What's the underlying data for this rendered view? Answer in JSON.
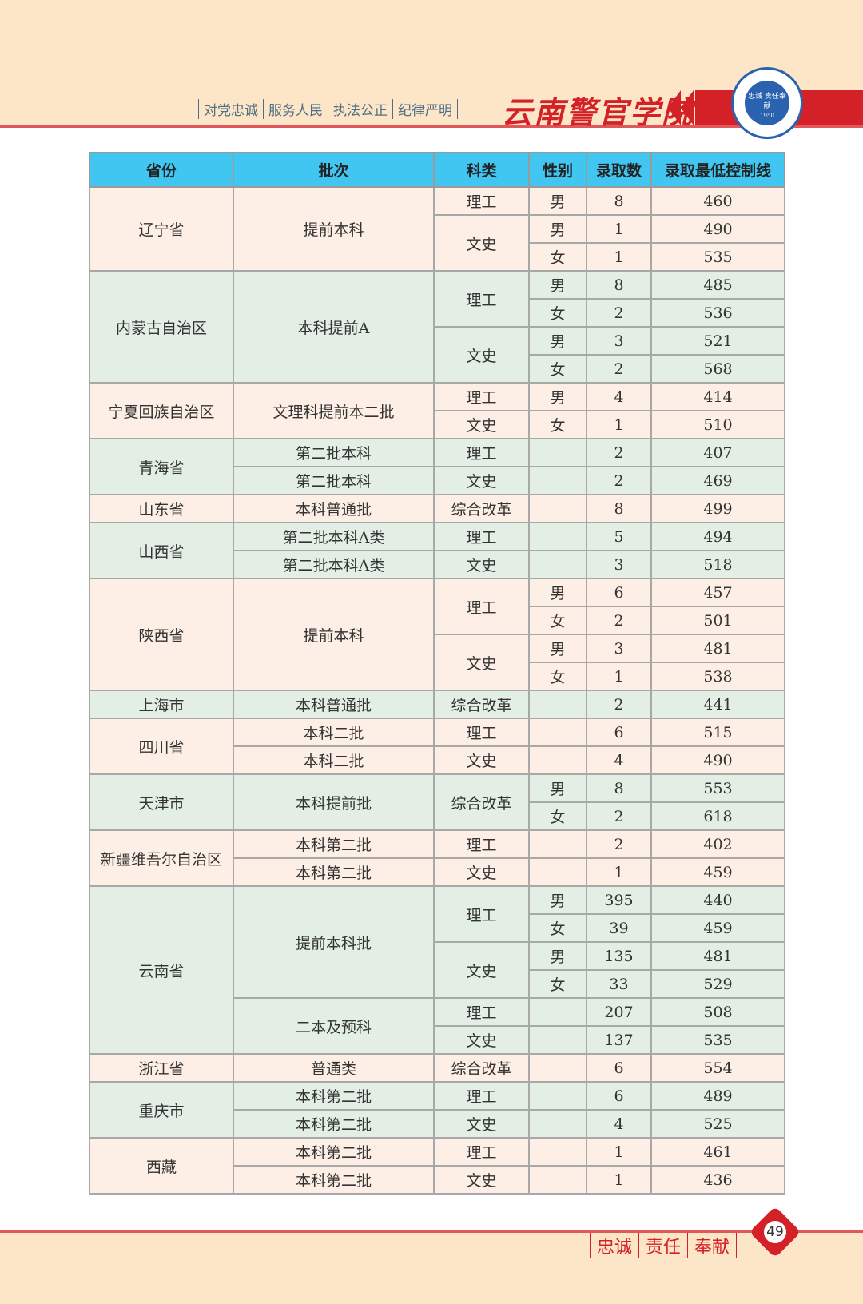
{
  "header": {
    "slogans": [
      "对党忠诚",
      "服务人民",
      "执法公正",
      "纪律严明"
    ],
    "college_name": "云南警官学院",
    "logo": {
      "motto": "忠诚 责任奉献",
      "year": "1950",
      "text_ring": "云南警官学院 Yunnan Police College"
    }
  },
  "colors": {
    "header_bg": "#40c6f1",
    "row_peach": "#fdefe5",
    "row_green": "#e3efe4",
    "accent_red": "#d42128",
    "page_bg": "#fde6c8"
  },
  "table": {
    "columns": [
      "省份",
      "批次",
      "科类",
      "性别",
      "录取数",
      "录取最低控制线"
    ],
    "groups": [
      {
        "rows": [
          [
            [
              "辽宁省",
              3
            ],
            [
              "提前本科",
              3
            ],
            "理工",
            "男",
            "8",
            "460"
          ],
          [
            [
              "文史",
              2
            ],
            "男",
            "1",
            "490"
          ],
          [
            "女",
            "1",
            "535"
          ]
        ]
      },
      {
        "rows": [
          [
            [
              "内蒙古自治区",
              4
            ],
            [
              "本科提前A",
              4
            ],
            [
              "理工",
              2
            ],
            "男",
            "8",
            "485"
          ],
          [
            "女",
            "2",
            "536"
          ],
          [
            [
              "文史",
              2
            ],
            "男",
            "3",
            "521"
          ],
          [
            "女",
            "2",
            "568"
          ]
        ]
      },
      {
        "rows": [
          [
            [
              "宁夏回族自治区",
              2
            ],
            [
              "文理科提前本二批",
              2
            ],
            "理工",
            "男",
            "4",
            "414"
          ],
          [
            "文史",
            "女",
            "1",
            "510"
          ]
        ]
      },
      {
        "rows": [
          [
            [
              "青海省",
              2
            ],
            "第二批本科",
            "理工",
            "",
            "2",
            "407"
          ],
          [
            "第二批本科",
            "文史",
            "",
            "2",
            "469"
          ]
        ]
      },
      {
        "rows": [
          [
            "山东省",
            "本科普通批",
            "综合改革",
            "",
            "8",
            "499"
          ]
        ]
      },
      {
        "rows": [
          [
            [
              "山西省",
              2
            ],
            "第二批本科A类",
            "理工",
            "",
            "5",
            "494"
          ],
          [
            "第二批本科A类",
            "文史",
            "",
            "3",
            "518"
          ]
        ]
      },
      {
        "rows": [
          [
            [
              "陕西省",
              4
            ],
            [
              "提前本科",
              4
            ],
            [
              "理工",
              2
            ],
            "男",
            "6",
            "457"
          ],
          [
            "女",
            "2",
            "501"
          ],
          [
            [
              "文史",
              2
            ],
            "男",
            "3",
            "481"
          ],
          [
            "女",
            "1",
            "538"
          ]
        ]
      },
      {
        "rows": [
          [
            "上海市",
            "本科普通批",
            "综合改革",
            "",
            "2",
            "441"
          ]
        ]
      },
      {
        "rows": [
          [
            [
              "四川省",
              2
            ],
            "本科二批",
            "理工",
            "",
            "6",
            "515"
          ],
          [
            "本科二批",
            "文史",
            "",
            "4",
            "490"
          ]
        ]
      },
      {
        "rows": [
          [
            [
              "天津市",
              2
            ],
            [
              "本科提前批",
              2
            ],
            [
              "综合改革",
              2
            ],
            "男",
            "8",
            "553"
          ],
          [
            "女",
            "2",
            "618"
          ]
        ]
      },
      {
        "rows": [
          [
            [
              "新疆维吾尔自治区",
              2
            ],
            "本科第二批",
            "理工",
            "",
            "2",
            "402"
          ],
          [
            "本科第二批",
            "文史",
            "",
            "1",
            "459"
          ]
        ]
      },
      {
        "rows": [
          [
            [
              "云南省",
              6
            ],
            [
              "提前本科批",
              4
            ],
            [
              "理工",
              2
            ],
            "男",
            "395",
            "440"
          ],
          [
            "女",
            "39",
            "459"
          ],
          [
            [
              "文史",
              2
            ],
            "男",
            "135",
            "481"
          ],
          [
            "女",
            "33",
            "529"
          ],
          [
            [
              "二本及预科",
              2
            ],
            "理工",
            "",
            "207",
            "508"
          ],
          [
            "文史",
            "",
            "137",
            "535"
          ]
        ]
      },
      {
        "rows": [
          [
            "浙江省",
            "普通类",
            "综合改革",
            "",
            "6",
            "554"
          ]
        ]
      },
      {
        "rows": [
          [
            [
              "重庆市",
              2
            ],
            "本科第二批",
            "理工",
            "",
            "6",
            "489"
          ],
          [
            "本科第二批",
            "文史",
            "",
            "4",
            "525"
          ]
        ]
      },
      {
        "rows": [
          [
            [
              "西藏",
              2
            ],
            "本科第二批",
            "理工",
            "",
            "1",
            "461"
          ],
          [
            "本科第二批",
            "文史",
            "",
            "1",
            "436"
          ]
        ]
      }
    ]
  },
  "footer": {
    "values": [
      "忠诚",
      "责任",
      "奉献"
    ],
    "page_number": "49"
  }
}
